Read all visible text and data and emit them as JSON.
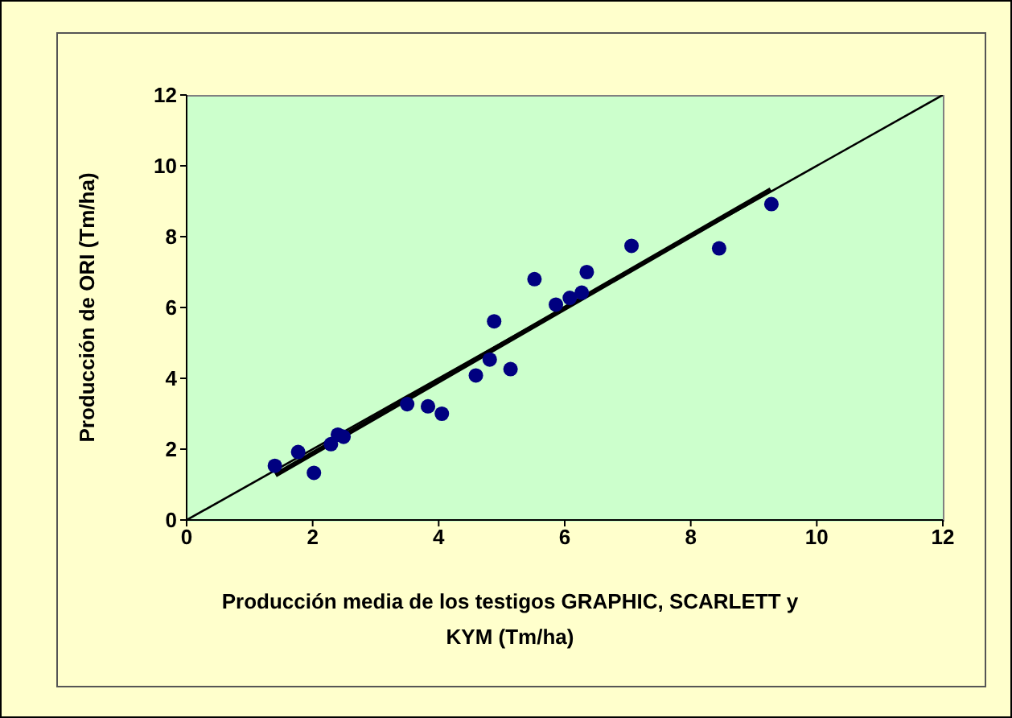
{
  "chart_data": {
    "type": "scatter",
    "xlabel": "Producción media de los testigos GRAPHIC, SCARLETT y KYM (Tm/ha)",
    "ylabel": "Producción de ORI (Tm/ha)",
    "xlim": [
      0,
      12
    ],
    "ylim": [
      0,
      12
    ],
    "xticks": [
      0,
      2,
      4,
      6,
      8,
      10,
      12
    ],
    "yticks": [
      0,
      2,
      4,
      6,
      8,
      10,
      12
    ],
    "marker": "circle",
    "series": [
      {
        "color": "#000080",
        "x": [
          1.4,
          1.77,
          2.02,
          2.29,
          2.4,
          2.49,
          3.5,
          3.83,
          4.05,
          4.59,
          4.81,
          4.88,
          5.14,
          5.52,
          5.86,
          6.08,
          6.27,
          6.35,
          7.06,
          8.45,
          9.28
        ],
        "values": [
          1.53,
          1.92,
          1.33,
          2.14,
          2.41,
          2.35,
          3.27,
          3.21,
          3.0,
          4.08,
          4.53,
          5.61,
          4.26,
          6.8,
          6.08,
          6.27,
          6.42,
          7.0,
          7.74,
          7.67,
          8.92
        ]
      },
      {
        "type": "line",
        "marker": "none",
        "color": "#000000",
        "x": [
          0,
          12
        ],
        "values": [
          0,
          12
        ]
      },
      {
        "type": "line",
        "marker": "none",
        "color": "#000000",
        "x": [
          1.41,
          9.27
        ],
        "values": [
          1.27,
          9.33
        ]
      }
    ]
  }
}
